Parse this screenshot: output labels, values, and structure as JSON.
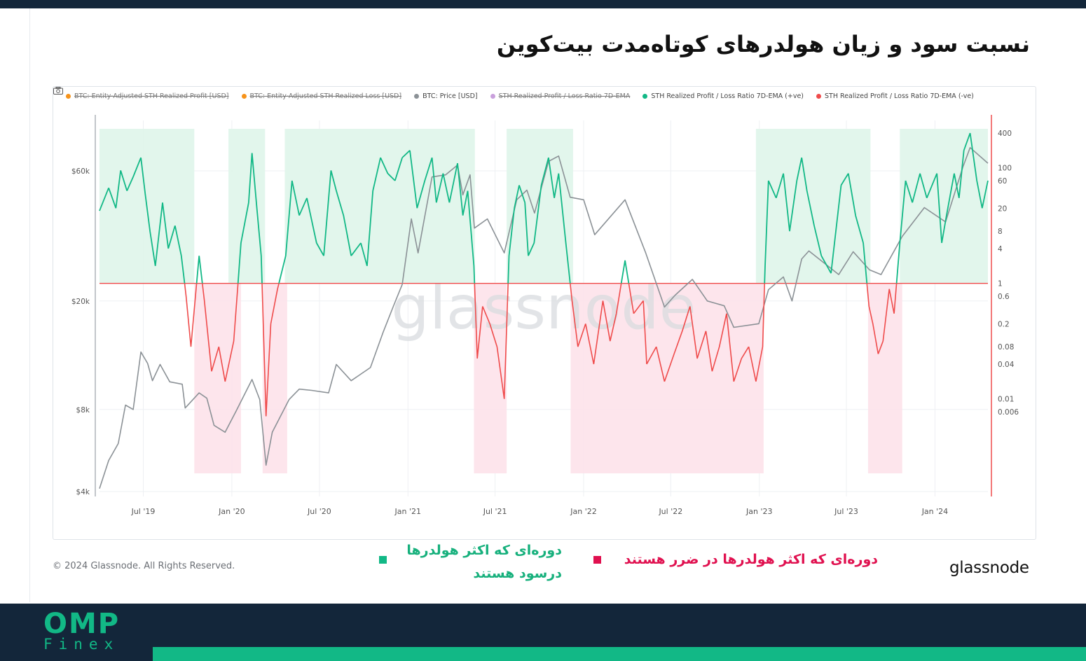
{
  "page": {
    "title": "نسبت سود و زیان هولدرهای کوتاه‌مدت بیت‌کوین",
    "copyright": "© 2024 Glassnode. All Rights Reserved.",
    "brand": "glassnode",
    "note_profit_line1": "دوره‌ای که اکثر هولدرها",
    "note_profit_line2": "درسود هستند",
    "note_loss": "دوره‌ای که اکثر هولدرها در ضرر هستند",
    "logo_top": "OMP",
    "logo_bottom": "Finex",
    "colors": {
      "profit": "#12b886",
      "loss": "#e0104f",
      "navy": "#13263a"
    }
  },
  "chart_data": {
    "type": "line",
    "watermark": "glassnode",
    "legend": [
      {
        "label": "BTC: Entity-Adjusted STH Realized Profit [USD]",
        "color": "#f7931a",
        "hidden": true
      },
      {
        "label": "BTC: Entity-Adjusted STH Realized Loss [USD]",
        "color": "#f7931a",
        "hidden": true
      },
      {
        "label": "BTC: Price [USD]",
        "color": "#8b9196",
        "hidden": false
      },
      {
        "label": "STH Realized Profit / Loss Ratio 7D-EMA",
        "color": "#c9a0dc",
        "hidden": true
      },
      {
        "label": "STH Realized Profit / Loss Ratio 7D-EMA (+ve)",
        "color": "#12b886",
        "hidden": false
      },
      {
        "label": "STH Realized Profit / Loss Ratio 7D-EMA (-ve)",
        "color": "#ef4b4b",
        "hidden": false
      }
    ],
    "x_ticks": [
      "Jul '19",
      "Jan '20",
      "Jul '20",
      "Jan '21",
      "Jul '21",
      "Jan '22",
      "Jul '22",
      "Jan '23",
      "Jul '23",
      "Jan '24"
    ],
    "x_range": [
      "2019-04-01",
      "2024-04-20"
    ],
    "y_left": {
      "scale": "log",
      "ticks": [
        "$4k",
        "$8k",
        "$20k",
        "$60k"
      ],
      "values": [
        4000,
        8000,
        20000,
        60000
      ]
    },
    "y_right": {
      "scale": "log",
      "ticks": [
        "400",
        "100",
        "60",
        "20",
        "8",
        "4",
        "1",
        "0.6",
        "0.2",
        "0.08",
        "0.04",
        "0.01",
        "0.006"
      ],
      "values": [
        400,
        100,
        60,
        20,
        8,
        4,
        1,
        0.6,
        0.2,
        0.08,
        0.04,
        0.01,
        0.006
      ]
    },
    "threshold": 1,
    "profit_periods": [
      [
        "2019-04-01",
        "2019-10-15"
      ],
      [
        "2019-12-25",
        "2020-03-10"
      ],
      [
        "2020-04-20",
        "2021-05-20"
      ],
      [
        "2021-07-25",
        "2021-12-10"
      ],
      [
        "2022-12-25",
        "2023-08-20"
      ],
      [
        "2023-10-20",
        "2024-04-20"
      ]
    ],
    "loss_periods": [
      [
        "2019-10-15",
        "2020-01-20"
      ],
      [
        "2020-03-05",
        "2020-04-25"
      ],
      [
        "2021-05-18",
        "2021-07-25"
      ],
      [
        "2021-12-05",
        "2023-01-10"
      ],
      [
        "2023-08-15",
        "2023-10-25"
      ]
    ],
    "series": [
      {
        "name": "BTC: Price [USD]",
        "color": "#8b9196",
        "points": [
          [
            "2019-04-01",
            4100
          ],
          [
            "2019-04-20",
            5200
          ],
          [
            "2019-05-10",
            6000
          ],
          [
            "2019-05-25",
            8300
          ],
          [
            "2019-06-10",
            8000
          ],
          [
            "2019-06-26",
            13000
          ],
          [
            "2019-07-10",
            11800
          ],
          [
            "2019-07-20",
            10200
          ],
          [
            "2019-08-05",
            11700
          ],
          [
            "2019-08-25",
            10100
          ],
          [
            "2019-09-20",
            9900
          ],
          [
            "2019-09-26",
            8100
          ],
          [
            "2019-10-25",
            9200
          ],
          [
            "2019-11-10",
            8800
          ],
          [
            "2019-11-25",
            7000
          ],
          [
            "2019-12-18",
            6600
          ],
          [
            "2020-01-10",
            7900
          ],
          [
            "2020-02-12",
            10300
          ],
          [
            "2020-02-28",
            8700
          ],
          [
            "2020-03-12",
            5000
          ],
          [
            "2020-03-25",
            6600
          ],
          [
            "2020-04-29",
            8700
          ],
          [
            "2020-05-20",
            9500
          ],
          [
            "2020-06-15",
            9400
          ],
          [
            "2020-07-20",
            9200
          ],
          [
            "2020-08-05",
            11700
          ],
          [
            "2020-09-05",
            10200
          ],
          [
            "2020-10-15",
            11400
          ],
          [
            "2020-11-10",
            15300
          ],
          [
            "2020-12-01",
            19000
          ],
          [
            "2020-12-20",
            23000
          ],
          [
            "2021-01-08",
            40000
          ],
          [
            "2021-01-22",
            30000
          ],
          [
            "2021-02-20",
            57000
          ],
          [
            "2021-03-20",
            58000
          ],
          [
            "2021-04-14",
            63000
          ],
          [
            "2021-04-25",
            49000
          ],
          [
            "2021-05-10",
            58000
          ],
          [
            "2021-05-19",
            37000
          ],
          [
            "2021-06-15",
            40000
          ],
          [
            "2021-07-20",
            30000
          ],
          [
            "2021-08-15",
            47000
          ],
          [
            "2021-09-05",
            51000
          ],
          [
            "2021-09-21",
            42000
          ],
          [
            "2021-10-20",
            65000
          ],
          [
            "2021-11-10",
            68000
          ],
          [
            "2021-12-04",
            48000
          ],
          [
            "2022-01-01",
            47000
          ],
          [
            "2022-01-24",
            35000
          ],
          [
            "2022-03-28",
            47000
          ],
          [
            "2022-05-10",
            30000
          ],
          [
            "2022-06-18",
            19000
          ],
          [
            "2022-07-10",
            21000
          ],
          [
            "2022-08-15",
            24000
          ],
          [
            "2022-09-15",
            20000
          ],
          [
            "2022-10-20",
            19200
          ],
          [
            "2022-11-09",
            16000
          ],
          [
            "2022-12-31",
            16500
          ],
          [
            "2023-01-20",
            22000
          ],
          [
            "2023-02-20",
            24500
          ],
          [
            "2023-03-10",
            20000
          ],
          [
            "2023-03-30",
            28500
          ],
          [
            "2023-04-14",
            30500
          ],
          [
            "2023-06-15",
            25000
          ],
          [
            "2023-07-15",
            30300
          ],
          [
            "2023-08-18",
            26000
          ],
          [
            "2023-09-11",
            25000
          ],
          [
            "2023-10-25",
            34500
          ],
          [
            "2023-12-10",
            44000
          ],
          [
            "2024-01-23",
            39000
          ],
          [
            "2024-02-28",
            62000
          ],
          [
            "2024-03-14",
            73000
          ],
          [
            "2024-04-20",
            64000
          ]
        ]
      },
      {
        "name": "STH Realized Profit / Loss Ratio 7D-EMA",
        "color": "#12b886",
        "color_negative": "#ef4b4b",
        "points": [
          [
            "2019-04-01",
            18
          ],
          [
            "2019-04-20",
            45
          ],
          [
            "2019-05-05",
            20
          ],
          [
            "2019-05-15",
            90
          ],
          [
            "2019-05-28",
            40
          ],
          [
            "2019-06-10",
            70
          ],
          [
            "2019-06-26",
            150
          ],
          [
            "2019-07-05",
            35
          ],
          [
            "2019-07-15",
            8
          ],
          [
            "2019-07-26",
            2
          ],
          [
            "2019-08-10",
            25
          ],
          [
            "2019-08-22",
            4
          ],
          [
            "2019-09-05",
            10
          ],
          [
            "2019-09-18",
            3
          ],
          [
            "2019-09-28",
            0.6
          ],
          [
            "2019-10-08",
            0.08
          ],
          [
            "2019-10-25",
            3
          ],
          [
            "2019-11-05",
            0.5
          ],
          [
            "2019-11-20",
            0.03
          ],
          [
            "2019-12-05",
            0.08
          ],
          [
            "2019-12-18",
            0.02
          ],
          [
            "2020-01-05",
            0.1
          ],
          [
            "2020-01-20",
            5
          ],
          [
            "2020-02-05",
            25
          ],
          [
            "2020-02-12",
            180
          ],
          [
            "2020-02-22",
            20
          ],
          [
            "2020-03-02",
            3
          ],
          [
            "2020-03-12",
            0.005
          ],
          [
            "2020-03-22",
            0.2
          ],
          [
            "2020-04-05",
            0.8
          ],
          [
            "2020-04-22",
            3
          ],
          [
            "2020-05-05",
            60
          ],
          [
            "2020-05-20",
            15
          ],
          [
            "2020-06-05",
            30
          ],
          [
            "2020-06-25",
            5
          ],
          [
            "2020-07-10",
            3
          ],
          [
            "2020-07-25",
            90
          ],
          [
            "2020-08-05",
            40
          ],
          [
            "2020-08-20",
            15
          ],
          [
            "2020-09-05",
            3
          ],
          [
            "2020-09-25",
            5
          ],
          [
            "2020-10-08",
            2
          ],
          [
            "2020-10-20",
            40
          ],
          [
            "2020-11-05",
            150
          ],
          [
            "2020-11-20",
            80
          ],
          [
            "2020-12-05",
            60
          ],
          [
            "2020-12-20",
            150
          ],
          [
            "2021-01-05",
            200
          ],
          [
            "2021-01-20",
            20
          ],
          [
            "2021-02-05",
            60
          ],
          [
            "2021-02-20",
            150
          ],
          [
            "2021-03-01",
            25
          ],
          [
            "2021-03-15",
            80
          ],
          [
            "2021-03-28",
            25
          ],
          [
            "2021-04-14",
            120
          ],
          [
            "2021-04-25",
            15
          ],
          [
            "2021-05-05",
            40
          ],
          [
            "2021-05-18",
            2
          ],
          [
            "2021-05-25",
            0.05
          ],
          [
            "2021-06-05",
            0.4
          ],
          [
            "2021-06-20",
            0.2
          ],
          [
            "2021-07-05",
            0.08
          ],
          [
            "2021-07-20",
            0.01
          ],
          [
            "2021-07-30",
            3
          ],
          [
            "2021-08-10",
            20
          ],
          [
            "2021-08-20",
            50
          ],
          [
            "2021-09-01",
            25
          ],
          [
            "2021-09-08",
            3
          ],
          [
            "2021-09-20",
            5
          ],
          [
            "2021-10-05",
            50
          ],
          [
            "2021-10-20",
            150
          ],
          [
            "2021-11-01",
            30
          ],
          [
            "2021-11-10",
            80
          ],
          [
            "2021-11-25",
            5
          ],
          [
            "2021-12-08",
            0.5
          ],
          [
            "2021-12-20",
            0.08
          ],
          [
            "2022-01-05",
            0.2
          ],
          [
            "2022-01-22",
            0.04
          ],
          [
            "2022-02-10",
            0.5
          ],
          [
            "2022-02-25",
            0.1
          ],
          [
            "2022-03-10",
            0.3
          ],
          [
            "2022-03-28",
            2.5
          ],
          [
            "2022-04-15",
            0.3
          ],
          [
            "2022-05-05",
            0.5
          ],
          [
            "2022-05-12",
            0.04
          ],
          [
            "2022-06-01",
            0.08
          ],
          [
            "2022-06-18",
            0.02
          ],
          [
            "2022-07-08",
            0.06
          ],
          [
            "2022-07-25",
            0.15
          ],
          [
            "2022-08-10",
            0.4
          ],
          [
            "2022-08-25",
            0.05
          ],
          [
            "2022-09-12",
            0.15
          ],
          [
            "2022-09-25",
            0.03
          ],
          [
            "2022-10-10",
            0.08
          ],
          [
            "2022-10-25",
            0.3
          ],
          [
            "2022-11-09",
            0.02
          ],
          [
            "2022-11-25",
            0.05
          ],
          [
            "2022-12-10",
            0.08
          ],
          [
            "2022-12-25",
            0.02
          ],
          [
            "2023-01-08",
            0.08
          ],
          [
            "2023-01-13",
            2
          ],
          [
            "2023-01-20",
            60
          ],
          [
            "2023-02-05",
            30
          ],
          [
            "2023-02-20",
            80
          ],
          [
            "2023-03-05",
            8
          ],
          [
            "2023-03-20",
            60
          ],
          [
            "2023-03-30",
            150
          ],
          [
            "2023-04-10",
            40
          ],
          [
            "2023-04-25",
            10
          ],
          [
            "2023-05-10",
            3
          ],
          [
            "2023-05-30",
            1.5
          ],
          [
            "2023-06-20",
            50
          ],
          [
            "2023-07-05",
            80
          ],
          [
            "2023-07-20",
            15
          ],
          [
            "2023-08-05",
            5
          ],
          [
            "2023-08-17",
            0.4
          ],
          [
            "2023-08-25",
            0.2
          ],
          [
            "2023-09-05",
            0.06
          ],
          [
            "2023-09-15",
            0.1
          ],
          [
            "2023-09-28",
            0.8
          ],
          [
            "2023-10-08",
            0.3
          ],
          [
            "2023-10-20",
            5
          ],
          [
            "2023-11-01",
            60
          ],
          [
            "2023-11-15",
            25
          ],
          [
            "2023-12-01",
            80
          ],
          [
            "2023-12-15",
            30
          ],
          [
            "2024-01-05",
            80
          ],
          [
            "2024-01-15",
            5
          ],
          [
            "2024-01-25",
            15
          ],
          [
            "2024-02-10",
            80
          ],
          [
            "2024-02-20",
            30
          ],
          [
            "2024-03-01",
            200
          ],
          [
            "2024-03-14",
            400
          ],
          [
            "2024-03-28",
            60
          ],
          [
            "2024-04-08",
            20
          ],
          [
            "2024-04-20",
            60
          ]
        ]
      }
    ]
  }
}
